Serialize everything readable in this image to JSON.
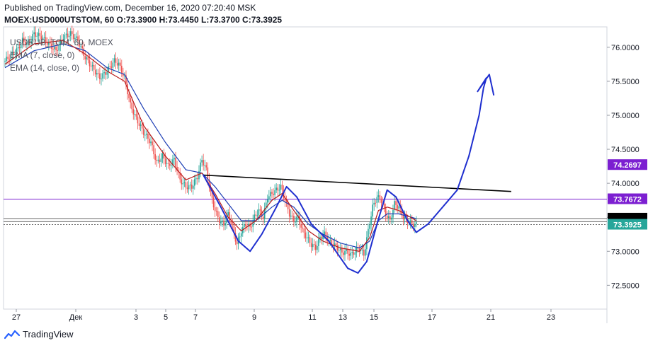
{
  "header": {
    "published": "Published on TradingView.com, December 16, 2020 07:20:40 MSK",
    "symbol": "MOEX:USD000UTSTOM, 60",
    "o_label": "O:",
    "o": "73.3900",
    "h_label": "H:",
    "h": "73.4450",
    "l_label": "L:",
    "l": "73.3700",
    "c_label": "C:",
    "c": "73.3925"
  },
  "legend": {
    "symbol": "USDRUB_TOM, 60, MOEX",
    "ema7": "EMA (7, close, 0)",
    "ema14": "EMA (14, close, 0)"
  },
  "footer": {
    "brand": "TradingView"
  },
  "colors": {
    "up": "#26a69a",
    "down": "#ef5350",
    "ema7": "#b71c1c",
    "ema14": "#1e3fb5",
    "level_purple": "#7c1fd1",
    "drawing": "#1f2fcf",
    "trendline": "#000000"
  },
  "chart_data": {
    "type": "candlestick",
    "timeframe": "60",
    "x_ticks": [
      "27",
      "Дек",
      "3",
      "5",
      "7",
      "9",
      "11",
      "13",
      "15",
      "17",
      "21",
      "23"
    ],
    "y_ticks": [
      "72.5000",
      "73.0000",
      "73.5000",
      "74.0000",
      "74.5000",
      "75.0000",
      "75.5000",
      "76.0000"
    ],
    "ylim": [
      72.15,
      76.3
    ],
    "price_labels": [
      {
        "value": 74.2697,
        "text": "74.2697",
        "bg": "#7c1fd1",
        "fg": "#ffffff"
      },
      {
        "value": 73.7672,
        "text": "73.7672",
        "bg": "#7c1fd1",
        "fg": "#ffffff"
      },
      {
        "value": 73.4821,
        "text": "73.4821",
        "bg": "#000000",
        "fg": "#ffffff"
      },
      {
        "value": 73.4364,
        "text": "73.4364",
        "bg": "#000000",
        "fg": "#ffffff"
      },
      {
        "value": 73.3925,
        "text": "73.3925",
        "bg": "#26a69a",
        "fg": "#ffffff"
      }
    ],
    "horizontal_levels": [
      73.7672,
      73.4821,
      73.4364,
      73.3925
    ],
    "close_path": [
      [
        0,
        75.8
      ],
      [
        4,
        75.88
      ],
      [
        8,
        75.95
      ],
      [
        12,
        76.1
      ],
      [
        16,
        76.05
      ],
      [
        20,
        76.2
      ],
      [
        25,
        76.15
      ],
      [
        30,
        76.05
      ],
      [
        35,
        75.95
      ],
      [
        40,
        76.15
      ],
      [
        45,
        76.2
      ],
      [
        50,
        76.1
      ],
      [
        55,
        75.85
      ],
      [
        60,
        75.7
      ],
      [
        65,
        75.55
      ],
      [
        70,
        75.65
      ],
      [
        75,
        75.8
      ],
      [
        78,
        75.75
      ],
      [
        82,
        75.55
      ],
      [
        86,
        75.15
      ],
      [
        90,
        74.95
      ],
      [
        95,
        74.75
      ],
      [
        100,
        74.6
      ],
      [
        104,
        74.3
      ],
      [
        108,
        74.4
      ],
      [
        112,
        74.25
      ],
      [
        116,
        74.35
      ],
      [
        120,
        74.05
      ],
      [
        124,
        73.95
      ],
      [
        128,
        73.95
      ],
      [
        132,
        74.1
      ],
      [
        135,
        74.35
      ],
      [
        138,
        74.2
      ],
      [
        141,
        73.85
      ],
      [
        144,
        73.6
      ],
      [
        147,
        73.45
      ],
      [
        150,
        73.4
      ],
      [
        153,
        73.55
      ],
      [
        156,
        73.35
      ],
      [
        159,
        73.1
      ],
      [
        162,
        73.3
      ],
      [
        165,
        73.4
      ],
      [
        168,
        73.35
      ],
      [
        171,
        73.5
      ],
      [
        174,
        73.6
      ],
      [
        177,
        73.5
      ],
      [
        180,
        73.8
      ],
      [
        183,
        73.85
      ],
      [
        186,
        73.9
      ],
      [
        189,
        73.95
      ],
      [
        192,
        73.75
      ],
      [
        195,
        73.55
      ],
      [
        198,
        73.45
      ],
      [
        201,
        73.5
      ],
      [
        204,
        73.3
      ],
      [
        207,
        73.2
      ],
      [
        210,
        73.1
      ],
      [
        213,
        73.05
      ],
      [
        216,
        73.2
      ],
      [
        219,
        73.25
      ],
      [
        222,
        73.15
      ],
      [
        225,
        73.1
      ],
      [
        228,
        73.05
      ],
      [
        231,
        72.98
      ],
      [
        234,
        73.0
      ],
      [
        237,
        72.95
      ],
      [
        240,
        73.0
      ],
      [
        243,
        73.05
      ],
      [
        246,
        72.95
      ],
      [
        249,
        73.3
      ],
      [
        252,
        73.65
      ],
      [
        255,
        73.8
      ],
      [
        258,
        73.75
      ],
      [
        261,
        73.55
      ],
      [
        264,
        73.45
      ],
      [
        267,
        73.7
      ],
      [
        270,
        73.65
      ],
      [
        273,
        73.5
      ],
      [
        276,
        73.45
      ],
      [
        279,
        73.4
      ],
      [
        282,
        73.39
      ]
    ],
    "ema7_path": [
      [
        0,
        75.75
      ],
      [
        20,
        76.05
      ],
      [
        40,
        76.1
      ],
      [
        55,
        75.9
      ],
      [
        70,
        75.65
      ],
      [
        82,
        75.5
      ],
      [
        95,
        74.85
      ],
      [
        110,
        74.4
      ],
      [
        124,
        74.05
      ],
      [
        135,
        74.15
      ],
      [
        144,
        73.85
      ],
      [
        153,
        73.5
      ],
      [
        162,
        73.3
      ],
      [
        172,
        73.45
      ],
      [
        183,
        73.75
      ],
      [
        190,
        73.85
      ],
      [
        198,
        73.6
      ],
      [
        208,
        73.3
      ],
      [
        218,
        73.15
      ],
      [
        230,
        73.05
      ],
      [
        243,
        73.0
      ],
      [
        250,
        73.2
      ],
      [
        256,
        73.6
      ],
      [
        262,
        73.65
      ],
      [
        270,
        73.6
      ],
      [
        282,
        73.45
      ]
    ],
    "ema14_path": [
      [
        0,
        75.7
      ],
      [
        20,
        75.95
      ],
      [
        40,
        76.05
      ],
      [
        55,
        75.95
      ],
      [
        70,
        75.7
      ],
      [
        82,
        75.6
      ],
      [
        95,
        75.1
      ],
      [
        110,
        74.6
      ],
      [
        124,
        74.2
      ],
      [
        135,
        74.15
      ],
      [
        144,
        73.95
      ],
      [
        153,
        73.7
      ],
      [
        162,
        73.45
      ],
      [
        172,
        73.45
      ],
      [
        183,
        73.65
      ],
      [
        190,
        73.75
      ],
      [
        198,
        73.65
      ],
      [
        208,
        73.4
      ],
      [
        218,
        73.25
      ],
      [
        230,
        73.12
      ],
      [
        243,
        73.05
      ],
      [
        250,
        73.15
      ],
      [
        256,
        73.45
      ],
      [
        262,
        73.55
      ],
      [
        270,
        73.55
      ],
      [
        282,
        73.48
      ]
    ],
    "trendline": [
      [
        136,
        74.12
      ],
      [
        347,
        73.88
      ]
    ],
    "drawing_path": [
      [
        136,
        74.12
      ],
      [
        148,
        73.65
      ],
      [
        160,
        73.15
      ],
      [
        168,
        73.0
      ],
      [
        176,
        73.25
      ],
      [
        186,
        73.65
      ],
      [
        193,
        73.95
      ],
      [
        200,
        73.8
      ],
      [
        210,
        73.4
      ],
      [
        222,
        73.15
      ],
      [
        235,
        72.75
      ],
      [
        242,
        72.68
      ],
      [
        248,
        72.85
      ],
      [
        255,
        73.4
      ],
      [
        262,
        73.9
      ],
      [
        268,
        73.8
      ],
      [
        276,
        73.45
      ],
      [
        282,
        73.28
      ],
      [
        290,
        73.4
      ],
      [
        296,
        73.55
      ],
      [
        310,
        73.9
      ],
      [
        318,
        74.4
      ],
      [
        325,
        75.0
      ],
      [
        328,
        75.4
      ],
      [
        330,
        75.55
      ],
      [
        324,
        75.35
      ],
      [
        332,
        75.6
      ],
      [
        335,
        75.3
      ]
    ]
  }
}
